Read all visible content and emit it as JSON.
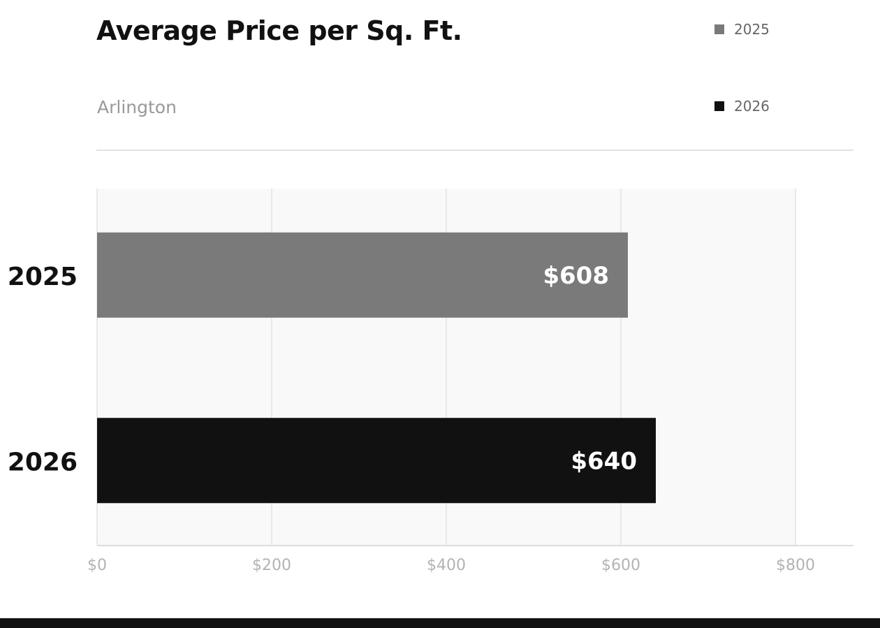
{
  "chart_data": {
    "type": "bar",
    "orientation": "horizontal",
    "title": "Average Price per Sq. Ft.",
    "subtitle": "Arlington",
    "categories": [
      "2025",
      "2026"
    ],
    "values": [
      608,
      640
    ],
    "data_labels": [
      "$608",
      "$640"
    ],
    "colors": [
      "#7a7a7a",
      "#111111"
    ],
    "xlim": [
      0,
      800
    ],
    "xticks": [
      0,
      200,
      400,
      600,
      800
    ],
    "xtick_labels": [
      "$0",
      "$200",
      "$400",
      "$600",
      "$800"
    ],
    "xlabel": "",
    "ylabel": "",
    "grid": true,
    "legend_position": "top-right",
    "legend": [
      {
        "label": "2025",
        "color": "#7a7a7a"
      },
      {
        "label": "2026",
        "color": "#111111"
      }
    ]
  }
}
